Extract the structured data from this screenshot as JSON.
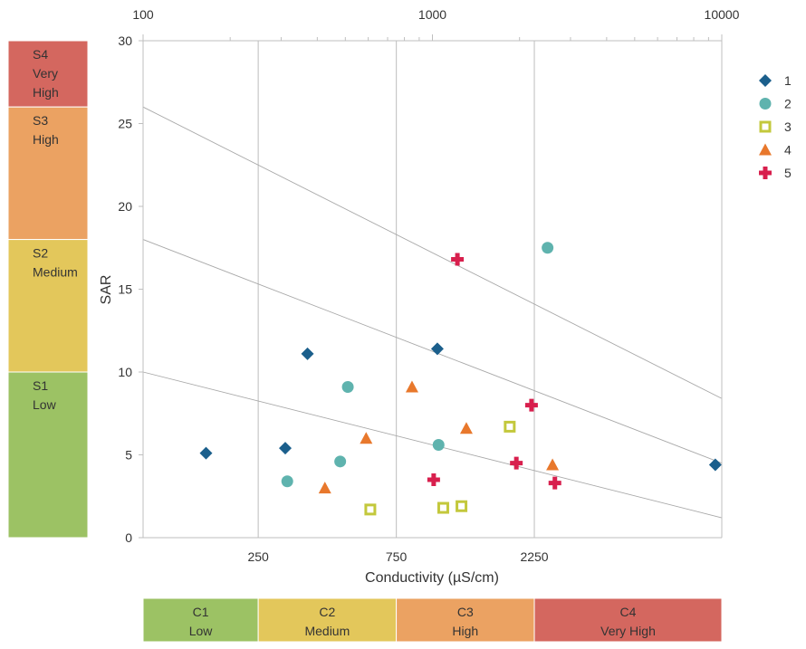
{
  "chart_data": {
    "type": "scatter",
    "title": "",
    "xlabel": "Conductivity (µS/cm)",
    "ylabel": "SAR",
    "x_scale": "log",
    "xlim": [
      100,
      10000
    ],
    "ylim": [
      0,
      30
    ],
    "top_ticks": [
      "100",
      "1000",
      "10000"
    ],
    "bottom_ticks": [
      {
        "value": 250,
        "label": "250"
      },
      {
        "value": 750,
        "label": "750"
      },
      {
        "value": 2250,
        "label": "2250"
      }
    ],
    "y_ticks": [
      0,
      5,
      10,
      15,
      20,
      25,
      30
    ],
    "divider_lines": [
      {
        "from": [
          100,
          10
        ],
        "to": [
          10000,
          1.2
        ]
      },
      {
        "from": [
          100,
          18
        ],
        "to": [
          10000,
          4.5
        ]
      },
      {
        "from": [
          100,
          26
        ],
        "to": [
          10000,
          8.4
        ]
      }
    ],
    "series": [
      {
        "name": "1",
        "marker": "diamond",
        "color": "#1b5f8c",
        "points": [
          [
            165,
            5.1
          ],
          [
            310,
            5.4
          ],
          [
            370,
            11.1
          ],
          [
            1040,
            11.4
          ],
          [
            9500,
            4.4
          ]
        ]
      },
      {
        "name": "2",
        "marker": "circle",
        "color": "#5fb3ae",
        "points": [
          [
            315,
            3.4
          ],
          [
            480,
            4.6
          ],
          [
            510,
            9.1
          ],
          [
            1050,
            5.6
          ],
          [
            2500,
            17.5
          ]
        ]
      },
      {
        "name": "3",
        "marker": "square-open",
        "color": "#c3c83c",
        "points": [
          [
            610,
            1.7
          ],
          [
            1090,
            1.8
          ],
          [
            1260,
            1.9
          ],
          [
            1850,
            6.7
          ]
        ]
      },
      {
        "name": "4",
        "marker": "triangle",
        "color": "#e8782c",
        "points": [
          [
            425,
            3.0
          ],
          [
            590,
            6.0
          ],
          [
            850,
            9.1
          ],
          [
            1310,
            6.6
          ],
          [
            2600,
            4.4
          ]
        ]
      },
      {
        "name": "5",
        "marker": "plus",
        "color": "#d81f4d",
        "points": [
          [
            1010,
            3.5
          ],
          [
            1220,
            16.8
          ],
          [
            1950,
            4.5
          ],
          [
            2200,
            8.0
          ],
          [
            2650,
            3.3
          ]
        ]
      }
    ],
    "grid": "vertical lines at class boundaries",
    "legend": "right"
  },
  "sar_bands": [
    {
      "code": "S4",
      "label": "Very High",
      "range": [
        26,
        30
      ],
      "color": "#d4675f"
    },
    {
      "code": "S3",
      "label": "High",
      "range": [
        18,
        26
      ],
      "color": "#eba262"
    },
    {
      "code": "S2",
      "label": "Medium",
      "range": [
        10,
        18
      ],
      "color": "#e3c75b"
    },
    {
      "code": "S1",
      "label": "Low",
      "range": [
        0,
        10
      ],
      "color": "#9cc264"
    }
  ],
  "conductivity_bands": [
    {
      "code": "C1",
      "label": "Low",
      "range": [
        100,
        250
      ],
      "color": "#9cc264"
    },
    {
      "code": "C2",
      "label": "Medium",
      "range": [
        250,
        750
      ],
      "color": "#e3c75b"
    },
    {
      "code": "C3",
      "label": "High",
      "range": [
        750,
        2250
      ],
      "color": "#eba262"
    },
    {
      "code": "C4",
      "label": "Very High",
      "range": [
        2250,
        10000
      ],
      "color": "#d4675f"
    }
  ]
}
